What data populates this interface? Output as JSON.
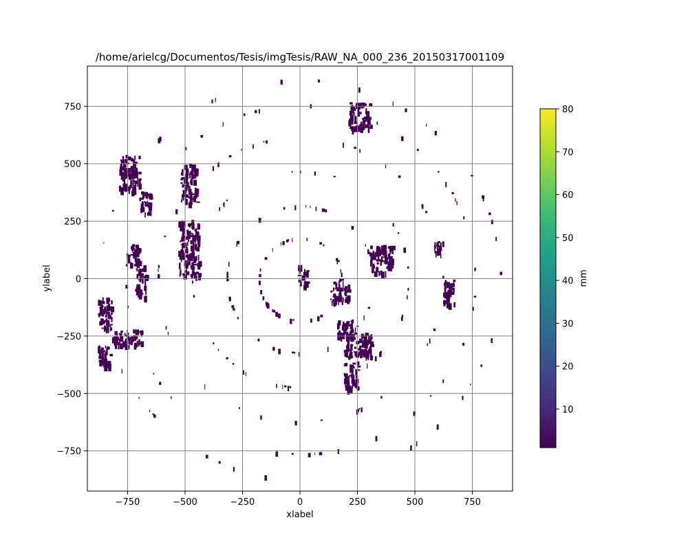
{
  "chart_data": {
    "type": "heatmap",
    "title": "/home/arielcg/Documentos/Tesis/imgTesis/RAW_NA_000_236_20150317001109",
    "xlabel": "xlabel",
    "ylabel": "ylabel",
    "xlim": [
      -925,
      925
    ],
    "ylim": [
      -925,
      925
    ],
    "x_ticks": [
      -750,
      -500,
      -250,
      0,
      250,
      500,
      750
    ],
    "y_ticks": [
      -750,
      -500,
      -250,
      0,
      250,
      500,
      750
    ],
    "x_tick_labels": [
      "−750",
      "−500",
      "−250",
      "0",
      "250",
      "500",
      "750"
    ],
    "y_tick_labels": [
      "−750",
      "−500",
      "−250",
      "0",
      "250",
      "500",
      "750"
    ],
    "grid": true,
    "grid_color": "#808080",
    "cell_color": "#440154",
    "colorbar": {
      "label": "mm",
      "min": 1,
      "max": 80,
      "ticks": [
        10,
        20,
        30,
        40,
        50,
        60,
        70,
        80
      ],
      "tick_labels": [
        "10",
        "20",
        "30",
        "40",
        "50",
        "60",
        "70",
        "80"
      ],
      "colormap": "viridis",
      "colors": [
        "#440154",
        "#482878",
        "#3e4989",
        "#31688e",
        "#26828e",
        "#1f9e89",
        "#35b779",
        "#6ece58",
        "#b5de2b",
        "#fde725"
      ]
    },
    "echo_regions": [
      {
        "x": [
          -790,
          -700
        ],
        "y": [
          380,
          540
        ],
        "value": 1
      },
      {
        "x": [
          -700,
          -650
        ],
        "y": [
          280,
          380
        ],
        "value": 1
      },
      {
        "x": [
          -520,
          -450
        ],
        "y": [
          330,
          500
        ],
        "value": 1
      },
      {
        "x": [
          -530,
          -440
        ],
        "y": [
          10,
          260
        ],
        "value": 1
      },
      {
        "x": [
          -760,
          -700
        ],
        "y": [
          60,
          150
        ],
        "value": 1
      },
      {
        "x": [
          -720,
          -670
        ],
        "y": [
          -80,
          60
        ],
        "value": 1
      },
      {
        "x": [
          -880,
          -820
        ],
        "y": [
          -220,
          -80
        ],
        "value": 1
      },
      {
        "x": [
          -820,
          -690
        ],
        "y": [
          -290,
          -220
        ],
        "value": 1
      },
      {
        "x": [
          -880,
          -820
        ],
        "y": [
          -380,
          -290
        ],
        "value": 1
      },
      {
        "x": [
          190,
          310
        ],
        "y": [
          -340,
          -230
        ],
        "value": 1
      },
      {
        "x": [
          160,
          230
        ],
        "y": [
          -260,
          -170
        ],
        "value": 1
      },
      {
        "x": [
          190,
          250
        ],
        "y": [
          -480,
          -360
        ],
        "value": 1
      },
      {
        "x": [
          130,
          210
        ],
        "y": [
          -100,
          0
        ],
        "value": 1
      },
      {
        "x": [
          210,
          310
        ],
        "y": [
          650,
          770
        ],
        "value": 1
      },
      {
        "x": [
          300,
          400
        ],
        "y": [
          30,
          150
        ],
        "value": 1
      },
      {
        "x": [
          620,
          670
        ],
        "y": [
          -110,
          0
        ],
        "value": 1
      },
      {
        "x": [
          580,
          620
        ],
        "y": [
          110,
          170
        ],
        "value": 1
      },
      {
        "x": [
          -10,
          30
        ],
        "y": [
          -30,
          60
        ],
        "value": 1
      }
    ]
  }
}
